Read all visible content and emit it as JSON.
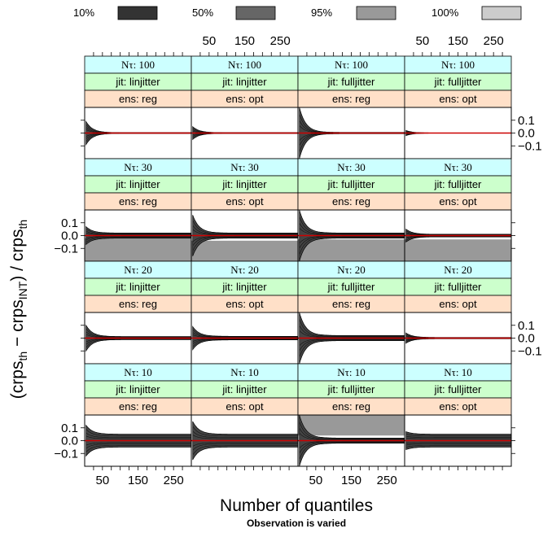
{
  "legend": {
    "items": [
      {
        "label": "10%",
        "color": "#333333"
      },
      {
        "label": "50%",
        "color": "#666666"
      },
      {
        "label": "95%",
        "color": "#999999"
      },
      {
        "label": "100%",
        "color": "#cccccc"
      }
    ]
  },
  "xlabel": "Number of quantiles",
  "ylabel_parts": {
    "a": "(crps",
    "a_sub": "th",
    "b": " − crps",
    "b_sub": "INT",
    "c": ") / crps",
    "c_sub": "th"
  },
  "caption": "Observation is varied",
  "strip_prefix": {
    "n": "Nτ: ",
    "jit": "jit: ",
    "ens": "ens: "
  },
  "colors": {
    "strip_n": "#ccffff",
    "strip_jit": "#ccffcc",
    "strip_ens": "#ffe0c8",
    "reference_line": "#cc0000",
    "panel_border": "#000000"
  },
  "chart_data": {
    "type": "area",
    "title": "",
    "xlabel": "Number of quantiles",
    "ylabel": "(crps_th − crps_INT) / crps_th",
    "xlim": [
      0,
      300
    ],
    "ylim": [
      -0.2,
      0.2
    ],
    "x_ticks": [
      50,
      150,
      250
    ],
    "x_tick_labels": [
      "50",
      "150",
      "250"
    ],
    "y_ticks": [
      0.1,
      0.0,
      -0.1
    ],
    "y_tick_labels": [
      "0.1",
      "0.0",
      "−0.1"
    ],
    "reference_line_y": 0.0,
    "bands": [
      "10%",
      "50%",
      "95%",
      "100%"
    ],
    "rows": [
      {
        "n_tau": "100",
        "panels": [
          {
            "jit": "linjitter",
            "ens": "reg",
            "envelope_start": 0.09,
            "envelope_end": 0.003
          },
          {
            "jit": "linjitter",
            "ens": "opt",
            "envelope_start": 0.05,
            "envelope_end": 0.003
          },
          {
            "jit": "fulljitter",
            "ens": "reg",
            "envelope_start": 0.2,
            "envelope_end": 0.005
          },
          {
            "jit": "fulljitter",
            "ens": "opt",
            "envelope_start": 0.02,
            "envelope_end": 0.001
          }
        ]
      },
      {
        "n_tau": "30",
        "panels": [
          {
            "jit": "linjitter",
            "ens": "reg",
            "envelope_start": 0.07,
            "envelope_end": 0.02,
            "gray_floor": -0.02
          },
          {
            "jit": "linjitter",
            "ens": "opt",
            "envelope_start": 0.16,
            "envelope_end": 0.02,
            "gray_floor": -0.04
          },
          {
            "jit": "fulljitter",
            "ens": "reg",
            "envelope_start": 0.2,
            "envelope_end": 0.02,
            "gray_floor": -0.03
          },
          {
            "jit": "fulljitter",
            "ens": "opt",
            "envelope_start": 0.05,
            "envelope_end": 0.01,
            "gray_floor": -0.03
          }
        ]
      },
      {
        "n_tau": "20",
        "panels": [
          {
            "jit": "linjitter",
            "ens": "reg",
            "envelope_start": 0.1,
            "envelope_end": 0.012
          },
          {
            "jit": "linjitter",
            "ens": "opt",
            "envelope_start": 0.09,
            "envelope_end": 0.014
          },
          {
            "jit": "fulljitter",
            "ens": "reg",
            "envelope_start": 0.2,
            "envelope_end": 0.02
          },
          {
            "jit": "fulljitter",
            "ens": "opt",
            "envelope_start": 0.04,
            "envelope_end": 0.005
          }
        ]
      },
      {
        "n_tau": "10",
        "panels": [
          {
            "jit": "linjitter",
            "ens": "reg",
            "envelope_start": 0.12,
            "envelope_end": 0.05,
            "gray_floor": -0.2
          },
          {
            "jit": "linjitter",
            "ens": "opt",
            "envelope_start": 0.15,
            "envelope_end": 0.05,
            "gray_floor": -0.2
          },
          {
            "jit": "fulljitter",
            "ens": "reg",
            "envelope_start": 0.2,
            "envelope_end": 0.02,
            "gray_top": 0.04
          },
          {
            "jit": "fulljitter",
            "ens": "opt",
            "envelope_start": 0.07,
            "envelope_end": 0.05,
            "gray_floor": -0.2
          }
        ]
      }
    ]
  }
}
